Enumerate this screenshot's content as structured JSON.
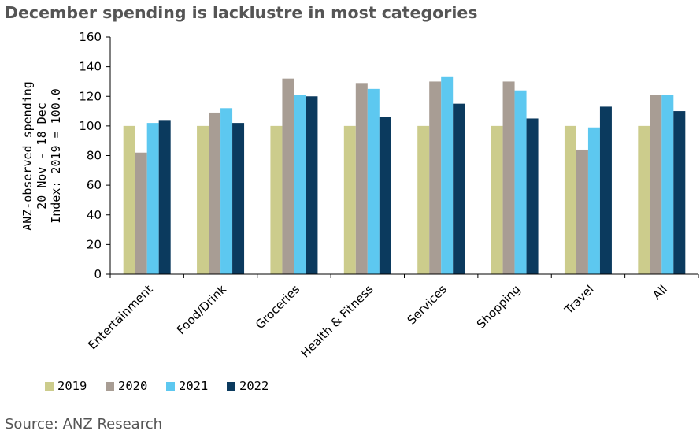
{
  "title": "December spending is lacklustre in most categories",
  "source": "Source: ANZ Research",
  "chart_data": {
    "type": "bar",
    "title": "December spending is lacklustre in most categories",
    "ylabel_lines": [
      "ANZ-observed spending",
      "20 Nov - 18 Dec",
      "Index: 2019 = 100.0"
    ],
    "xlabel": "",
    "ylim": [
      0,
      160
    ],
    "yticks": [
      0,
      20,
      40,
      60,
      80,
      100,
      120,
      140,
      160
    ],
    "grid": false,
    "legend_position": "bottom",
    "categories": [
      "Entertainment",
      "Food/Drink",
      "Groceries",
      "Health & Fitness",
      "Services",
      "Shopping",
      "Travel",
      "All"
    ],
    "series": [
      {
        "name": "2019",
        "color": "#cccc8c",
        "values": [
          100,
          100,
          100,
          100,
          100,
          100,
          100,
          100
        ]
      },
      {
        "name": "2020",
        "color": "#a89d94",
        "values": [
          82,
          109,
          132,
          129,
          130,
          130,
          84,
          121
        ]
      },
      {
        "name": "2021",
        "color": "#5dc8f0",
        "values": [
          102,
          112,
          121,
          125,
          133,
          124,
          99,
          121
        ]
      },
      {
        "name": "2022",
        "color": "#0b3a5e",
        "values": [
          104,
          102,
          120,
          106,
          115,
          105,
          113,
          110
        ]
      }
    ]
  }
}
